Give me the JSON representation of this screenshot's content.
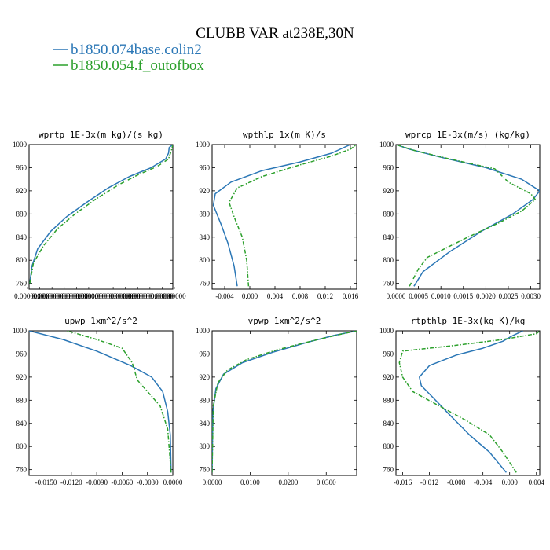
{
  "figure": {
    "title": "CLUBB VAR at238E,30N",
    "legend": [
      {
        "label": "b1850.074base.colin2",
        "color": "#2b77b6",
        "dash": "solid"
      },
      {
        "label": "b1850.054.f_outofbox",
        "color": "#2ca02c",
        "dash": "dashdot"
      }
    ]
  },
  "chart_data": [
    {
      "type": "line",
      "title": "wprtp  1E-3x(m kg)/(s kg)",
      "xlim": [
        0.0,
        1.0
      ],
      "ylim": [
        1000,
        750
      ],
      "y_inverted": true,
      "yticks": [
        760,
        800,
        840,
        880,
        920,
        960,
        1000
      ],
      "xtick_labels": [
        "0.000000",
        "0.000",
        "0.000000000",
        "0.00000000000",
        "0.0000000",
        "0.000000",
        "0.0000000",
        "0.00000000000",
        "0.0000000",
        "0.0000000",
        "0.00000000000",
        "0.00000",
        "0.00000"
      ],
      "series": [
        {
          "color": "#2b77b6",
          "points": [
            [
              0.005,
              760
            ],
            [
              0.02,
              790
            ],
            [
              0.06,
              820
            ],
            [
              0.15,
              850
            ],
            [
              0.26,
              875
            ],
            [
              0.4,
              900
            ],
            [
              0.55,
              925
            ],
            [
              0.7,
              945
            ],
            [
              0.85,
              960
            ],
            [
              0.95,
              975
            ],
            [
              0.97,
              985
            ],
            [
              0.975,
              995
            ],
            [
              1.0,
              1000
            ]
          ]
        },
        {
          "color": "#2ca02c",
          "points": [
            [
              0.005,
              760
            ],
            [
              0.03,
              795
            ],
            [
              0.1,
              825
            ],
            [
              0.2,
              855
            ],
            [
              0.32,
              880
            ],
            [
              0.46,
              905
            ],
            [
              0.62,
              930
            ],
            [
              0.76,
              948
            ],
            [
              0.89,
              962
            ],
            [
              0.97,
              975
            ],
            [
              0.99,
              990
            ],
            [
              1.0,
              1000
            ]
          ]
        }
      ]
    },
    {
      "type": "line",
      "title": "wpthlp  1x(m K)/s",
      "xlim": [
        -0.006,
        0.017
      ],
      "ylim": [
        1000,
        750
      ],
      "y_inverted": true,
      "yticks": [
        760,
        800,
        840,
        880,
        920,
        960,
        1000
      ],
      "xticks": [
        -0.004,
        0.0,
        0.004,
        0.008,
        0.012,
        0.016
      ],
      "xtick_labels": [
        "-0.004",
        "0.000",
        "0.004",
        "0.008",
        "0.012",
        "0.016"
      ],
      "series": [
        {
          "color": "#2b77b6",
          "points": [
            [
              -0.002,
              755
            ],
            [
              -0.0025,
              790
            ],
            [
              -0.0035,
              830
            ],
            [
              -0.0045,
              860
            ],
            [
              -0.0058,
              895
            ],
            [
              -0.0055,
              915
            ],
            [
              -0.003,
              935
            ],
            [
              0.002,
              955
            ],
            [
              0.008,
              970
            ],
            [
              0.013,
              985
            ],
            [
              0.016,
              1000
            ]
          ]
        },
        {
          "color": "#2ca02c",
          "points": [
            [
              -0.0002,
              755
            ],
            [
              -0.0005,
              800
            ],
            [
              -0.0012,
              840
            ],
            [
              -0.0025,
              875
            ],
            [
              -0.0033,
              900
            ],
            [
              -0.002,
              925
            ],
            [
              0.002,
              945
            ],
            [
              0.008,
              965
            ],
            [
              0.013,
              980
            ],
            [
              0.016,
              992
            ],
            [
              0.017,
              1000
            ]
          ]
        }
      ]
    },
    {
      "type": "line",
      "title": "wprcp  1E-3x(m/s) (kg/kg)",
      "xlim": [
        0.0,
        0.0032
      ],
      "ylim": [
        1000,
        750
      ],
      "y_inverted": true,
      "yticks": [
        760,
        800,
        840,
        880,
        920,
        960,
        1000
      ],
      "xticks": [
        0.0,
        0.0005,
        0.001,
        0.0015,
        0.002,
        0.0025,
        0.003
      ],
      "xtick_labels": [
        "0.0000",
        "0.0005",
        "0.0010",
        "0.0015",
        "0.0020",
        "0.0025",
        "0.0030"
      ],
      "series": [
        {
          "color": "#2b77b6",
          "points": [
            [
              0.0004,
              755
            ],
            [
              0.0006,
              780
            ],
            [
              0.0012,
              815
            ],
            [
              0.0019,
              850
            ],
            [
              0.0026,
              880
            ],
            [
              0.00305,
              905
            ],
            [
              0.0032,
              920
            ],
            [
              0.0028,
              940
            ],
            [
              0.002,
              960
            ],
            [
              0.001,
              978
            ],
            [
              0.0003,
              992
            ],
            [
              0.0,
              1000
            ]
          ]
        },
        {
          "color": "#2ca02c",
          "points": [
            [
              0.0003,
              755
            ],
            [
              0.0005,
              785
            ],
            [
              0.0007,
              805
            ],
            [
              0.0016,
              840
            ],
            [
              0.0023,
              865
            ],
            [
              0.0028,
              885
            ],
            [
              0.0031,
              905
            ],
            [
              0.003,
              915
            ],
            [
              0.0025,
              935
            ],
            [
              0.0022,
              958
            ],
            [
              0.0012,
              975
            ],
            [
              0.0004,
              990
            ],
            [
              0.0,
              1000
            ]
          ]
        }
      ]
    },
    {
      "type": "line",
      "title": "upwp  1xm^2/s^2",
      "xlim": [
        -0.017,
        0.0
      ],
      "ylim": [
        1000,
        750
      ],
      "y_inverted": true,
      "yticks": [
        760,
        800,
        840,
        880,
        920,
        960,
        1000
      ],
      "xticks": [
        -0.015,
        -0.012,
        -0.009,
        -0.006,
        -0.003,
        0.0
      ],
      "xtick_labels": [
        "-0.0150",
        "-0.0120",
        "-0.0090",
        "-0.0060",
        "-0.0030",
        "0.0000"
      ],
      "series": [
        {
          "color": "#2b77b6",
          "points": [
            [
              -0.0002,
              755
            ],
            [
              -0.0003,
              820
            ],
            [
              -0.0006,
              860
            ],
            [
              -0.0012,
              895
            ],
            [
              -0.0025,
              920
            ],
            [
              -0.005,
              940
            ],
            [
              -0.009,
              965
            ],
            [
              -0.013,
              985
            ],
            [
              -0.017,
              1000
            ]
          ]
        },
        {
          "color": "#2ca02c",
          "points": [
            [
              -0.0002,
              755
            ],
            [
              -0.0006,
              830
            ],
            [
              -0.0015,
              870
            ],
            [
              -0.003,
              895
            ],
            [
              -0.0042,
              915
            ],
            [
              -0.0048,
              945
            ],
            [
              -0.006,
              970
            ],
            [
              -0.009,
              985
            ],
            [
              -0.012,
              998
            ],
            [
              -0.0125,
              1000
            ]
          ]
        }
      ]
    },
    {
      "type": "line",
      "title": "vpwp  1xm^2/s^2",
      "xlim": [
        0.0,
        0.038
      ],
      "ylim": [
        1000,
        750
      ],
      "y_inverted": true,
      "yticks": [
        760,
        800,
        840,
        880,
        920,
        960,
        1000
      ],
      "xticks": [
        0.0,
        0.01,
        0.02,
        0.03
      ],
      "xtick_labels": [
        "0.0000",
        "0.0100",
        "0.0200",
        "0.0300"
      ],
      "series": [
        {
          "color": "#2b77b6",
          "points": [
            [
              0.0,
              755
            ],
            [
              0.0002,
              860
            ],
            [
              0.001,
              900
            ],
            [
              0.003,
              925
            ],
            [
              0.008,
              945
            ],
            [
              0.016,
              963
            ],
            [
              0.025,
              980
            ],
            [
              0.032,
              992
            ],
            [
              0.038,
              1000
            ]
          ]
        },
        {
          "color": "#2ca02c",
          "points": [
            [
              0.0,
              755
            ],
            [
              0.0003,
              870
            ],
            [
              0.0015,
              910
            ],
            [
              0.004,
              932
            ],
            [
              0.009,
              950
            ],
            [
              0.017,
              967
            ],
            [
              0.026,
              982
            ],
            [
              0.033,
              993
            ],
            [
              0.038,
              1000
            ]
          ]
        }
      ]
    },
    {
      "type": "line",
      "title": "rtpthlp  1E-3x(kg K)/kg",
      "xlim": [
        -0.017,
        0.0045
      ],
      "ylim": [
        1000,
        750
      ],
      "y_inverted": true,
      "yticks": [
        760,
        800,
        840,
        880,
        920,
        960,
        1000
      ],
      "xticks": [
        -0.016,
        -0.012,
        -0.008,
        -0.004,
        0.0,
        0.004
      ],
      "xtick_labels": [
        "-0.016",
        "-0.012",
        "-0.008",
        "-0.004",
        "0.000",
        "0.004"
      ],
      "series": [
        {
          "color": "#2b77b6",
          "points": [
            [
              -0.0005,
              755
            ],
            [
              -0.003,
              790
            ],
            [
              -0.006,
              820
            ],
            [
              -0.009,
              855
            ],
            [
              -0.0115,
              885
            ],
            [
              -0.0132,
              905
            ],
            [
              -0.0135,
              920
            ],
            [
              -0.012,
              940
            ],
            [
              -0.008,
              958
            ],
            [
              -0.004,
              970
            ],
            [
              -0.001,
              982
            ],
            [
              0.0005,
              992
            ],
            [
              0.002,
              1000
            ]
          ]
        },
        {
          "color": "#2ca02c",
          "points": [
            [
              0.001,
              755
            ],
            [
              -0.001,
              790
            ],
            [
              -0.003,
              820
            ],
            [
              -0.0065,
              845
            ],
            [
              -0.0105,
              870
            ],
            [
              -0.0145,
              895
            ],
            [
              -0.016,
              920
            ],
            [
              -0.0165,
              945
            ],
            [
              -0.016,
              965
            ],
            [
              -0.008,
              975
            ],
            [
              -0.001,
              985
            ],
            [
              0.004,
              995
            ],
            [
              0.0045,
              1000
            ]
          ]
        }
      ]
    }
  ]
}
